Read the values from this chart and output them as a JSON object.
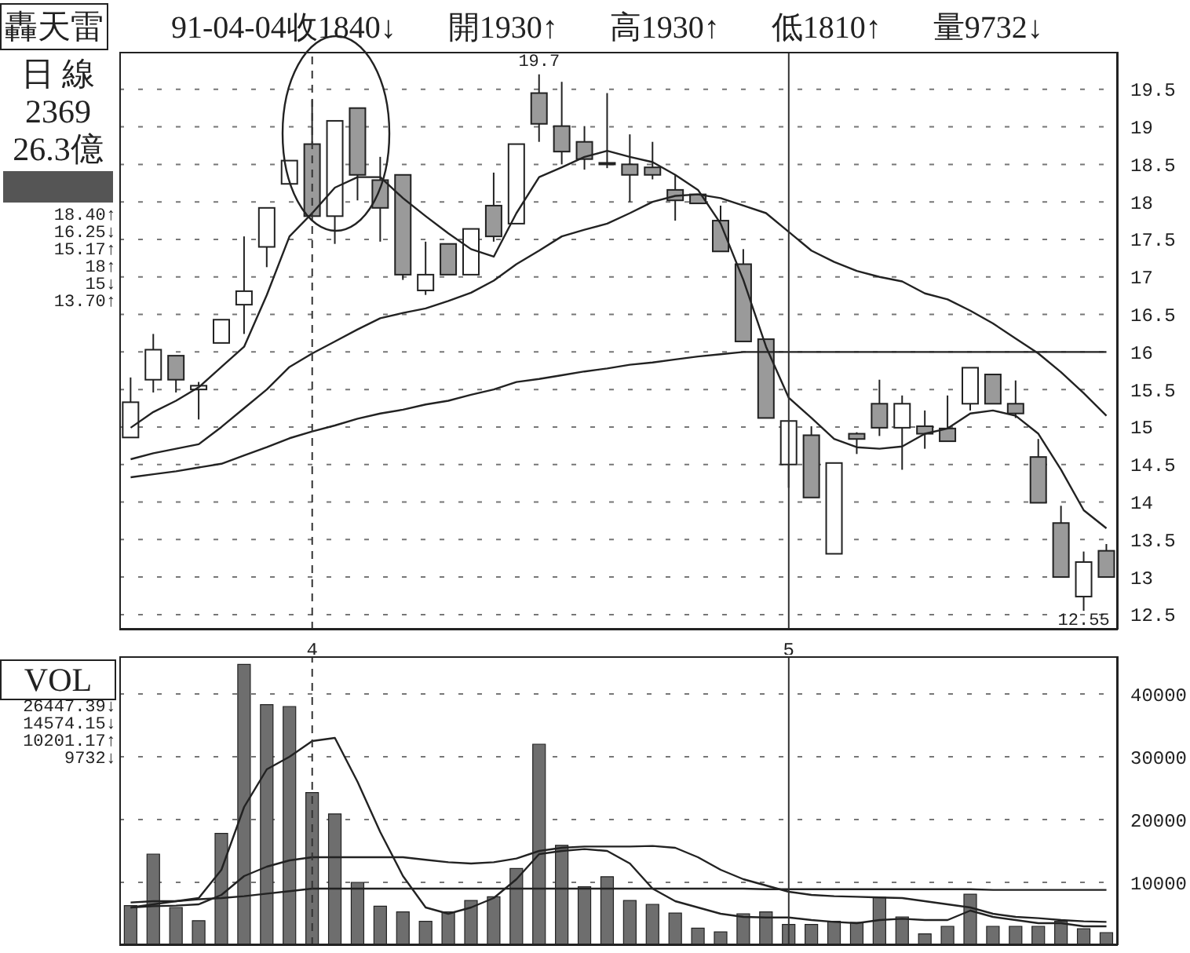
{
  "chart_data": [
    {
      "type": "candlestick",
      "title": "轟天雷",
      "subtitle": "91-04-04收1840↓ 開1930↑ 高1930↑ 低1810↑ 量9732↓",
      "categories": [
        null,
        null,
        null,
        null,
        null,
        null,
        null,
        null,
        "4",
        null,
        null,
        null,
        null,
        null,
        null,
        null,
        null,
        null,
        null,
        null,
        null,
        null,
        null,
        null,
        null,
        null,
        null,
        null,
        null,
        "5",
        null,
        null,
        null,
        null,
        null,
        null,
        null,
        null,
        null,
        null,
        null,
        null,
        null,
        null
      ],
      "ohlc": [
        [
          14.86,
          15.66,
          14.86,
          15.33
        ],
        [
          15.63,
          16.24,
          15.46,
          16.03
        ],
        [
          15.95,
          15.95,
          15.46,
          15.63
        ],
        [
          15.5,
          15.6,
          15.1,
          15.55
        ],
        [
          16.12,
          16.43,
          16.12,
          16.43
        ],
        [
          16.63,
          17.54,
          16.24,
          16.81
        ],
        [
          17.4,
          17.92,
          17.13,
          17.92
        ],
        [
          18.24,
          18.55,
          18.24,
          18.55
        ],
        [
          18.77,
          19.36,
          17.81,
          17.81
        ],
        [
          17.81,
          19.08,
          17.44,
          19.08
        ],
        [
          19.25,
          19.25,
          18.02,
          18.36
        ],
        [
          18.29,
          18.6,
          17.47,
          17.92
        ],
        [
          18.36,
          18.36,
          16.96,
          17.03
        ],
        [
          16.82,
          17.47,
          16.76,
          17.03
        ],
        [
          17.44,
          17.44,
          17.03,
          17.03
        ],
        [
          17.03,
          17.64,
          17.03,
          17.64
        ],
        [
          17.95,
          18.39,
          17.47,
          17.54
        ],
        [
          17.71,
          18.77,
          17.71,
          18.77
        ],
        [
          19.45,
          19.7,
          18.8,
          19.04
        ],
        [
          19.01,
          19.6,
          18.5,
          18.67
        ],
        [
          18.8,
          19.01,
          18.43,
          18.57
        ],
        [
          18.52,
          19.45,
          18.45,
          18.5
        ],
        [
          18.5,
          18.9,
          18.0,
          18.36
        ],
        [
          18.46,
          18.8,
          18.3,
          18.36
        ],
        [
          18.16,
          18.36,
          17.75,
          18.02
        ],
        [
          18.1,
          18.1,
          17.98,
          17.98
        ],
        [
          17.75,
          17.95,
          17.34,
          17.34
        ],
        [
          17.17,
          17.37,
          16.14,
          16.14
        ],
        [
          16.17,
          16.17,
          15.12,
          15.12
        ],
        [
          14.5,
          15.08,
          14.19,
          15.08
        ],
        [
          14.89,
          15.01,
          14.06,
          14.06
        ],
        [
          13.31,
          14.52,
          13.31,
          14.52
        ],
        [
          14.91,
          14.93,
          14.64,
          14.84
        ],
        [
          15.31,
          15.63,
          14.88,
          14.99
        ],
        [
          14.99,
          15.42,
          14.43,
          15.31
        ],
        [
          15.01,
          15.22,
          14.71,
          14.91
        ],
        [
          14.98,
          15.42,
          14.81,
          14.81
        ],
        [
          15.31,
          15.79,
          15.22,
          15.79
        ],
        [
          15.7,
          15.7,
          15.31,
          15.31
        ],
        [
          15.31,
          15.62,
          15.12,
          15.18
        ],
        [
          14.6,
          14.84,
          13.99,
          13.99
        ],
        [
          13.72,
          13.95,
          13.0,
          13.0
        ],
        [
          12.74,
          13.34,
          12.55,
          13.2
        ],
        [
          13.35,
          13.44,
          13.0,
          13.0
        ]
      ],
      "colors": [
        "#ffffff",
        "#ffffff",
        "#9a9a9a",
        "#ffffff",
        "#ffffff",
        "#ffffff",
        "#ffffff",
        "#ffffff",
        "#9a9a9a",
        "#ffffff",
        "#9a9a9a",
        "#9a9a9a",
        "#9a9a9a",
        "#ffffff",
        "#9a9a9a",
        "#ffffff",
        "#9a9a9a",
        "#ffffff",
        "#9a9a9a",
        "#9a9a9a",
        "#9a9a9a",
        "#9a9a9a",
        "#9a9a9a",
        "#9a9a9a",
        "#9a9a9a",
        "#9a9a9a",
        "#9a9a9a",
        "#9a9a9a",
        "#9a9a9a",
        "#ffffff",
        "#9a9a9a",
        "#ffffff",
        "#9a9a9a",
        "#9a9a9a",
        "#ffffff",
        "#9a9a9a",
        "#9a9a9a",
        "#ffffff",
        "#9a9a9a",
        "#9a9a9a",
        "#9a9a9a",
        "#9a9a9a",
        "#ffffff",
        "#9a9a9a"
      ],
      "series": [
        {
          "type": "line",
          "color": "#222222",
          "values": [
            14.99,
            15.2,
            15.35,
            15.53,
            15.8,
            16.07,
            16.76,
            17.54,
            17.85,
            18.19,
            18.33,
            18.33,
            18.05,
            17.81,
            17.58,
            17.37,
            17.27,
            17.85,
            18.33,
            18.46,
            18.6,
            18.68,
            18.6,
            18.53,
            18.36,
            18.16,
            17.71,
            16.96,
            16.07,
            15.39,
            15.12,
            14.84,
            14.73,
            14.71,
            14.74,
            14.91,
            14.98,
            15.18,
            15.22,
            15.15,
            14.91,
            14.43,
            13.89,
            13.65
          ]
        },
        {
          "type": "line",
          "color": "#222222",
          "values": [
            14.57,
            14.65,
            14.71,
            14.77,
            15.0,
            15.25,
            15.5,
            15.8,
            15.98,
            16.14,
            16.3,
            16.45,
            16.52,
            16.58,
            16.68,
            16.79,
            16.95,
            17.17,
            17.35,
            17.54,
            17.63,
            17.71,
            17.85,
            18.0,
            18.08,
            18.1,
            18.05,
            17.95,
            17.85,
            17.6,
            17.35,
            17.2,
            17.08,
            17.0,
            16.94,
            16.78,
            16.7,
            16.55,
            16.38,
            16.18,
            15.98,
            15.73,
            15.45,
            15.15
          ]
        },
        {
          "type": "line",
          "color": "#222222",
          "values": [
            14.33,
            14.37,
            14.41,
            14.46,
            14.51,
            14.62,
            14.73,
            14.85,
            14.94,
            15.02,
            15.11,
            15.18,
            15.23,
            15.3,
            15.35,
            15.43,
            15.5,
            15.6,
            15.64,
            15.69,
            15.74,
            15.78,
            15.83,
            15.86,
            15.9,
            15.94,
            15.97,
            16.0,
            16.0,
            16.0,
            16.0,
            16.0,
            16.0,
            16.0,
            16.0,
            16.0,
            16.0,
            16.0,
            16.0,
            16.0,
            16.0,
            16.0,
            16.0,
            16.0
          ]
        }
      ],
      "ylim": [
        12.3,
        20.0
      ],
      "yticks": [
        {
          "value": 12.5,
          "label": "12.5"
        },
        13,
        {
          "value": 13.5,
          "label": "13.5"
        },
        14,
        {
          "value": 14.5,
          "label": "14.5"
        },
        15,
        {
          "value": 15.5,
          "label": "15.5"
        },
        16,
        {
          "value": 16.5,
          "label": "16.5"
        },
        17,
        {
          "value": 17.5,
          "label": "17.5"
        },
        18,
        {
          "value": 18.5,
          "label": "18.5"
        },
        19,
        {
          "value": 19.5,
          "label": "19.5"
        }
      ],
      "grid": "y",
      "ref_lines": [
        {
          "axis": "x",
          "value": "4",
          "line_style": "dashed",
          "color": "#333333"
        },
        {
          "axis": "x",
          "value": "5",
          "line_style": "solid",
          "color": "#333333"
        }
      ],
      "annotations": [
        {
          "text": "19.7",
          "y": 19.7
        },
        {
          "text": "12.55",
          "y": 12.55
        },
        "日 線",
        "2369",
        "26.3億",
        "18.40↑",
        "16.25↓",
        "15.17↑",
        "18↑",
        "15↓",
        "13.70↑"
      ]
    },
    {
      "type": "bar",
      "categories": [
        null,
        null,
        null,
        null,
        null,
        null,
        null,
        null,
        "4",
        null,
        null,
        null,
        null,
        null,
        null,
        null,
        null,
        null,
        null,
        null,
        null,
        null,
        null,
        null,
        null,
        null,
        null,
        null,
        null,
        "5",
        null,
        null,
        null,
        null,
        null,
        null,
        null,
        null,
        null,
        null,
        null,
        null,
        null,
        null
      ],
      "tick_labels": "y",
      "series": [
        {
          "type": "bar",
          "color": "#6e6e6e",
          "values": [
            6300,
            14500,
            6000,
            3900,
            17800,
            44700,
            38300,
            38000,
            24300,
            20900,
            10000,
            6200,
            5300,
            3800,
            5300,
            7100,
            7700,
            12200,
            32000,
            15900,
            9300,
            10900,
            7100,
            6500,
            5100,
            2700,
            2100,
            5000,
            5300,
            3300,
            3300,
            3800,
            3600,
            7600,
            4500,
            1800,
            3000,
            8100,
            3000,
            3000,
            3000,
            3800,
            2600,
            2000
          ]
        },
        {
          "type": "line",
          "color": "#222222",
          "values": [
            6800,
            7000,
            7000,
            7500,
            12000,
            22000,
            28000,
            30000,
            32500,
            33000,
            26000,
            18000,
            11000,
            6000,
            5000,
            6000,
            7500,
            10500,
            14500,
            15000,
            15300,
            15000,
            13000,
            9000,
            7000,
            6000,
            5000,
            4500,
            4400,
            4400,
            4000,
            3700,
            3500,
            4000,
            4200,
            4000,
            4000,
            5500,
            4500,
            4000,
            3500,
            3500,
            3000,
            3000
          ]
        },
        {
          "type": "line",
          "color": "#222222",
          "values": [
            6000,
            6200,
            6300,
            6500,
            8000,
            11000,
            12500,
            13500,
            14000,
            14000,
            14000,
            14000,
            14000,
            13600,
            13200,
            13000,
            13200,
            13800,
            15000,
            15500,
            15700,
            15700,
            15700,
            15800,
            15500,
            14000,
            12000,
            10500,
            9500,
            8500,
            8000,
            7800,
            7700,
            7600,
            7500,
            7000,
            6500,
            6000,
            5000,
            4500,
            4300,
            4000,
            3800,
            3700
          ]
        },
        {
          "type": "line",
          "color": "#222222",
          "values": [
            6000,
            6500,
            7000,
            7300,
            7500,
            7800,
            8200,
            8600,
            9000,
            9000,
            9000,
            9000,
            9000,
            9000,
            9000,
            9000,
            9000,
            9000,
            9000,
            9000,
            9000,
            9000,
            9000,
            9000,
            9000,
            9000,
            9000,
            9000,
            8900,
            8900,
            8900,
            8900,
            8900,
            8900,
            8900,
            8900,
            8900,
            8900,
            8800,
            8800,
            8800,
            8800,
            8800,
            8800
          ]
        }
      ],
      "ylim": [
        0,
        46000
      ],
      "yticks": [
        10000,
        20000,
        30000,
        40000
      ],
      "grid": "y",
      "ref_lines": [
        {
          "axis": "x",
          "value": "4",
          "line_style": "dashed",
          "color": "#333333"
        },
        {
          "axis": "x",
          "value": "5",
          "line_style": "solid",
          "color": "#333333"
        }
      ],
      "annotations": [
        "VOL",
        "26447.39↓",
        "14574.15↓",
        "10201.17↑",
        "9732↓"
      ]
    }
  ]
}
